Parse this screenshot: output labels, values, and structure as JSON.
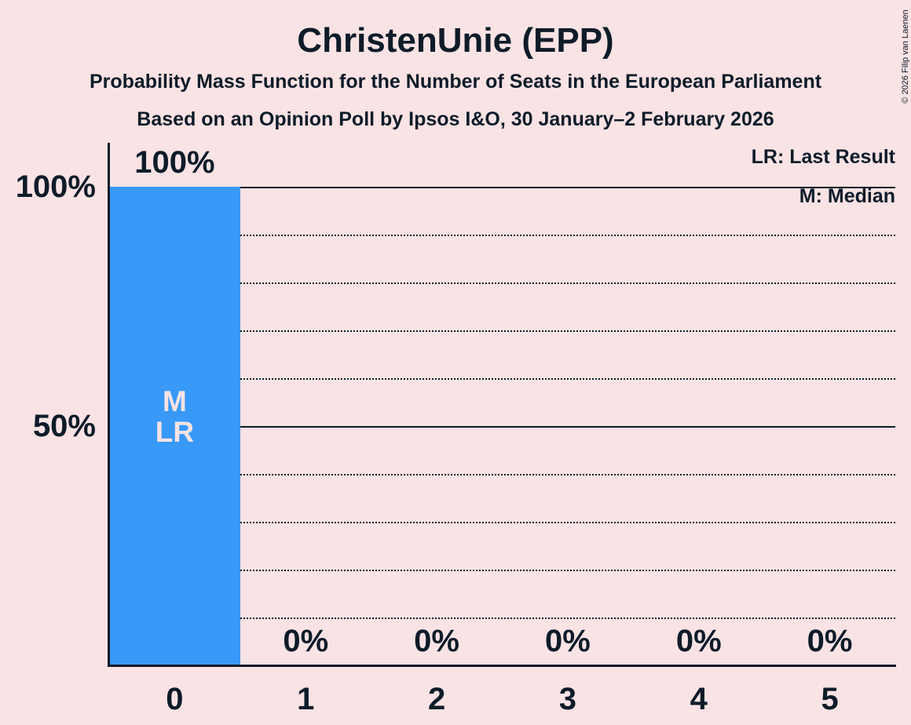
{
  "page": {
    "background": "#fae3e4",
    "text_color": "#0e1b29",
    "copyright": "© 2026 Filip van Laenen"
  },
  "header": {
    "title": "ChristenUnie (EPP)",
    "subtitle_line1": "Probability Mass Function for the Number of Seats in the European Parliament",
    "subtitle_line2": "Based on an Opinion Poll by Ipsos I&O, 30 January–2 February 2026"
  },
  "legend": {
    "last_result": "LR: Last Result",
    "median": "M: Median"
  },
  "chart_data": {
    "type": "bar",
    "title": "ChristenUnie (EPP)",
    "subtitle": "Probability Mass Function for the Number of Seats in the European Parliament",
    "source_note": "Based on an Opinion Poll by Ipsos I&O, 30 January–2 February 2026",
    "categories": [
      "0",
      "1",
      "2",
      "3",
      "4",
      "5"
    ],
    "values": [
      100,
      0,
      0,
      0,
      0,
      0
    ],
    "value_labels": [
      "100%",
      "0%",
      "0%",
      "0%",
      "0%",
      "0%"
    ],
    "bar_annotations": [
      [
        "M",
        "LR"
      ],
      [],
      [],
      [],
      [],
      []
    ],
    "annotation_key": {
      "LR": "Last Result",
      "M": "Median"
    },
    "ylim": [
      0,
      100
    ],
    "y_axis": {
      "ticks": [
        {
          "value": 100,
          "label": "100%"
        },
        {
          "value": 50,
          "label": "50%"
        }
      ],
      "gridlines": [
        {
          "value": 100,
          "style": "solid"
        },
        {
          "value": 90,
          "style": "dotted"
        },
        {
          "value": 80,
          "style": "dotted"
        },
        {
          "value": 70,
          "style": "dotted"
        },
        {
          "value": 60,
          "style": "dotted"
        },
        {
          "value": 50,
          "style": "solid"
        },
        {
          "value": 40,
          "style": "dotted"
        },
        {
          "value": 30,
          "style": "dotted"
        },
        {
          "value": 20,
          "style": "dotted"
        },
        {
          "value": 10,
          "style": "dotted"
        }
      ]
    },
    "legend": [
      "LR: Last Result",
      "M: Median"
    ],
    "legend_position": "top-right",
    "grid": true,
    "colors": {
      "bar": "#3899f9",
      "background": "#fae3e4",
      "text": "#0e1b29",
      "bar_label": "#fae3e4"
    }
  }
}
